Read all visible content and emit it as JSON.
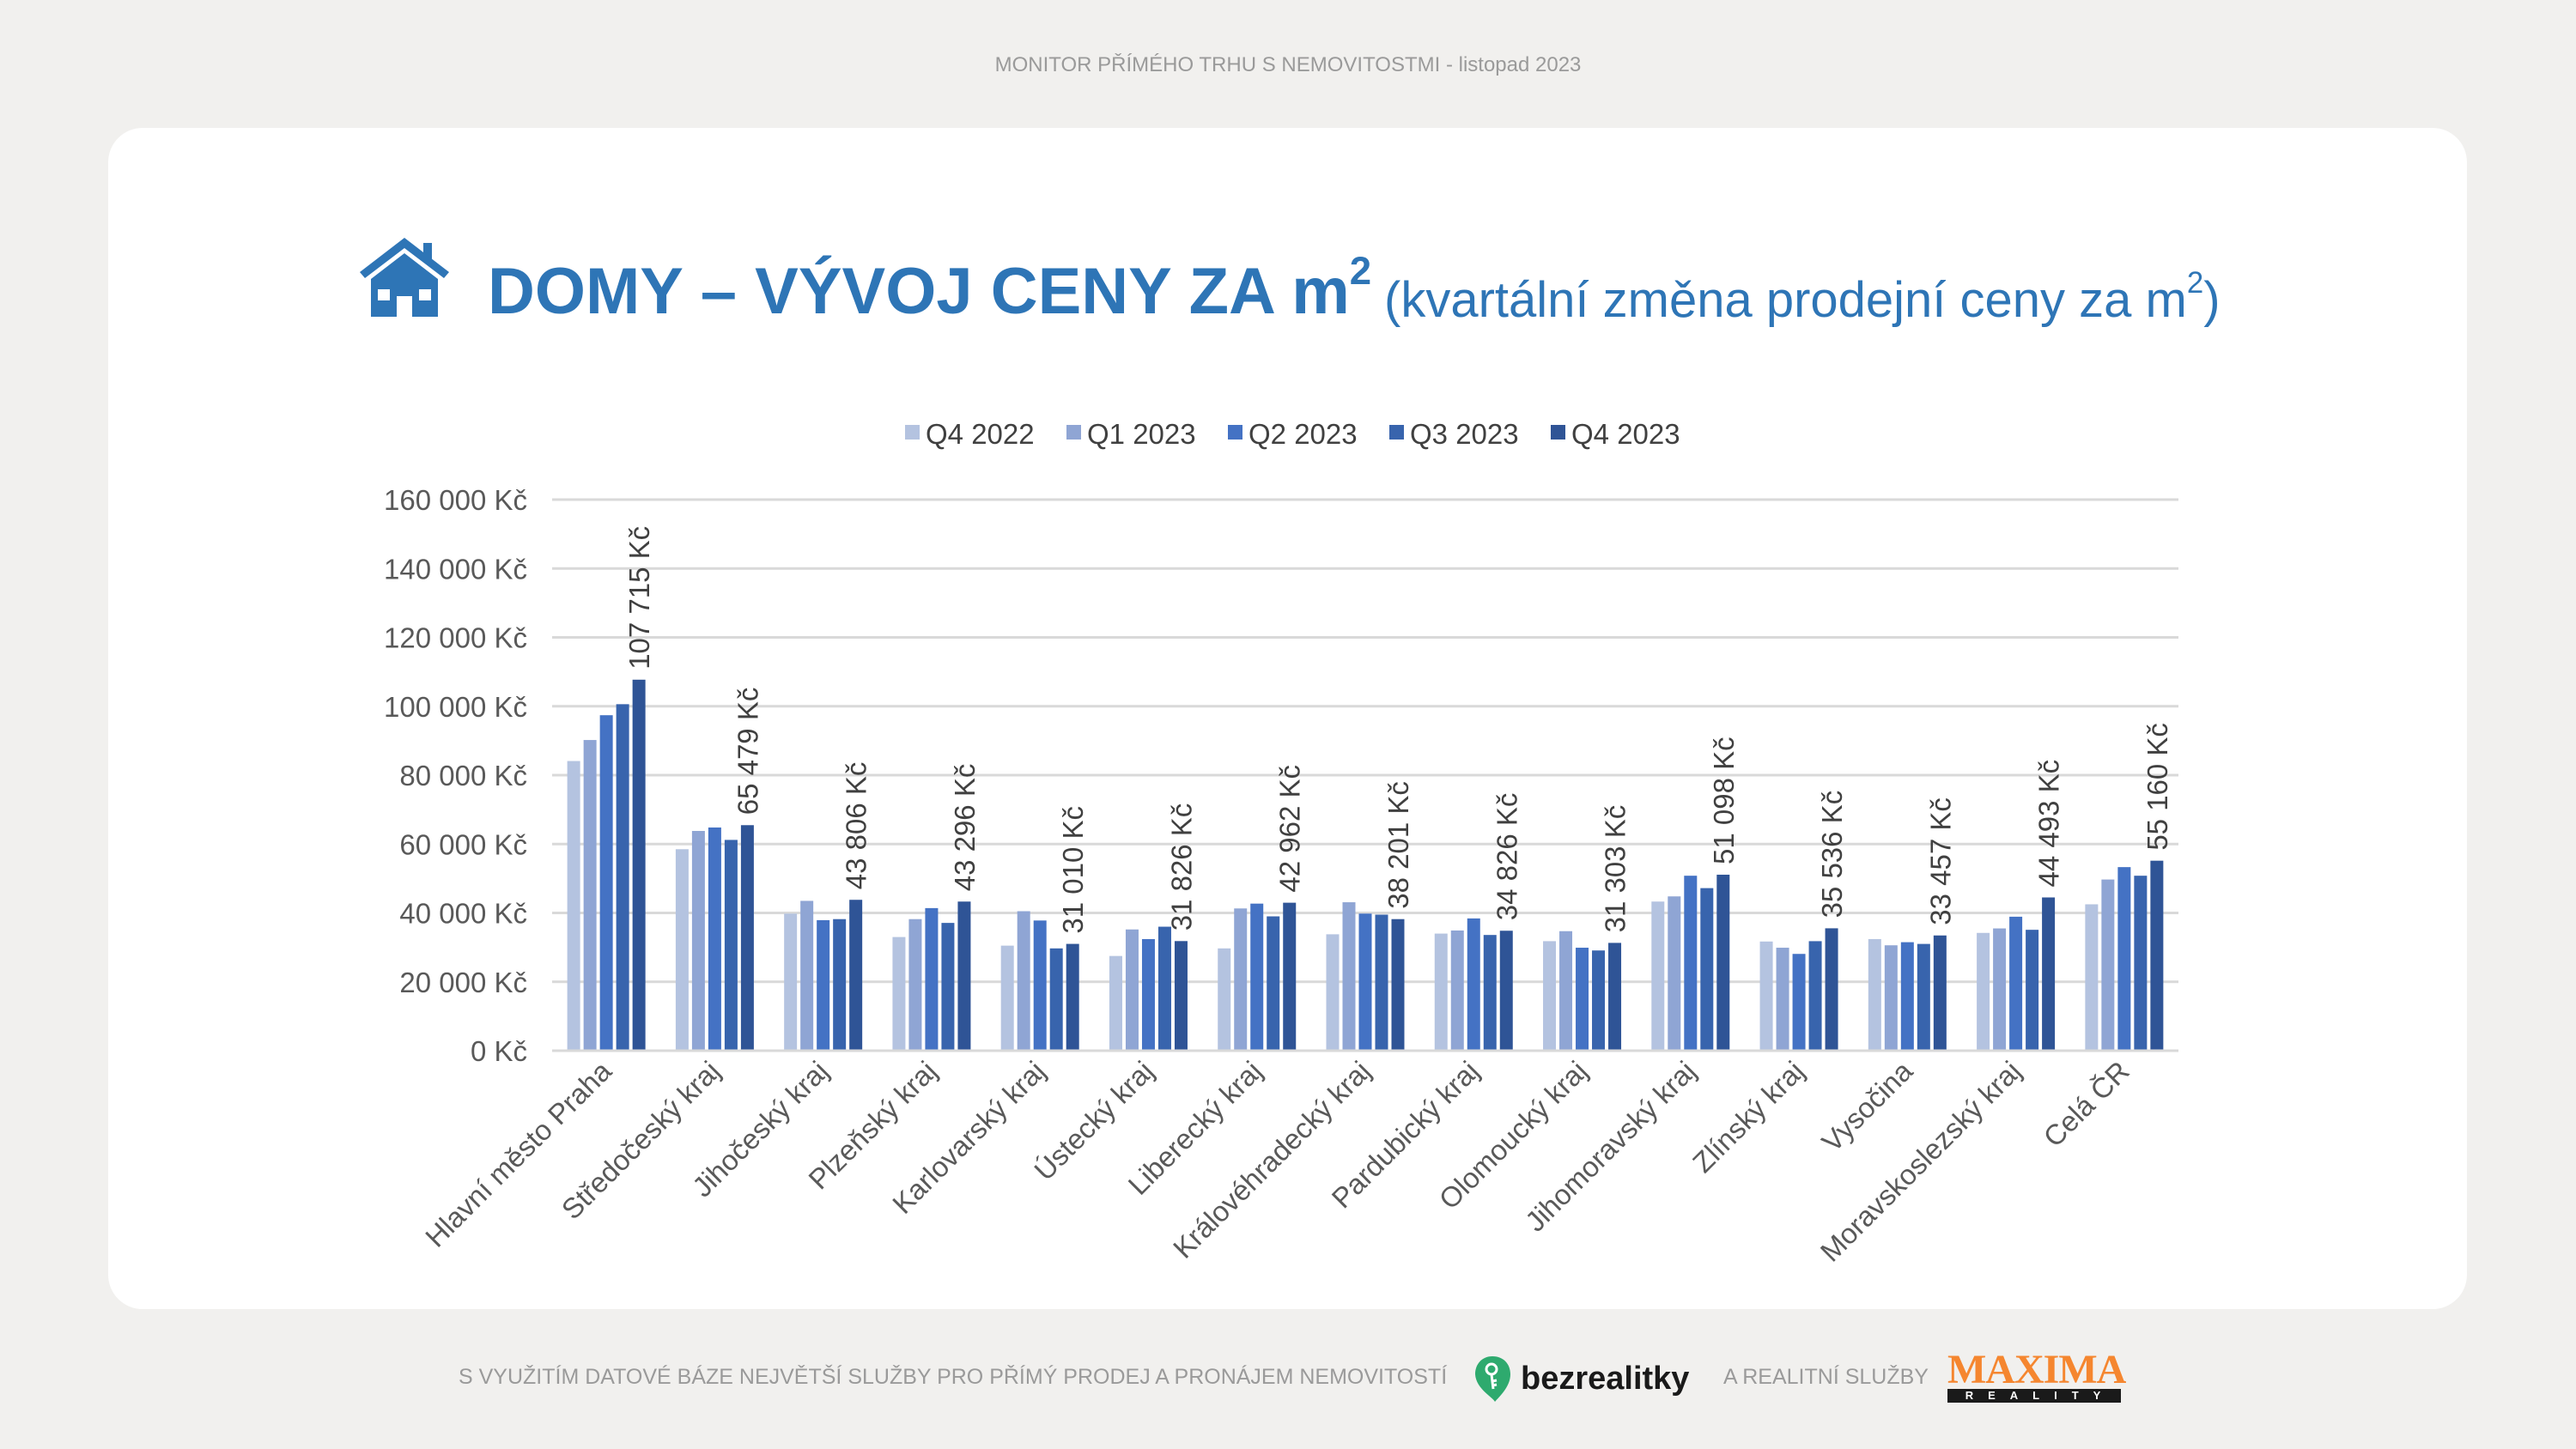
{
  "header": {
    "text": "MONITOR PŘÍMÉHO TRHU S NEMOVITOSTMI - listopad 2023"
  },
  "title": {
    "main": "DOMY – VÝVOJ CENY ZA m",
    "main_sup": "2",
    "sub": "(kvartální změna prodejní ceny za m",
    "sub_sup": "2",
    "sub_end": ")",
    "icon": "house-icon"
  },
  "footer": {
    "text": "S VYUŽITÍM DATOVÉ BÁZE NEJVĚTŠÍ SLUŽBY PRO PŘÍMÝ PRODEJ A PRONÁJEM NEMOVITOSTÍ",
    "bezrealitky": "bezrealitky",
    "and_text": "A REALITNÍ SLUŽBY",
    "maxima_top": "MAXIMA",
    "maxima_bottom": "REALITY"
  },
  "chart_data": {
    "type": "bar",
    "title": "DOMY – VÝVOJ CENY ZA m2",
    "xlabel": "",
    "ylabel": "",
    "ylim": [
      0,
      160000
    ],
    "yticks": [
      0,
      20000,
      40000,
      60000,
      80000,
      100000,
      120000,
      140000,
      160000
    ],
    "ytick_labels": [
      "0 Kč",
      "20 000 Kč",
      "40 000 Kč",
      "60 000 Kč",
      "80 000 Kč",
      "100 000 Kč",
      "120 000 Kč",
      "140 000 Kč",
      "160 000 Kč"
    ],
    "grid": true,
    "legend_position": "top-center",
    "categories": [
      "Hlavní město Praha",
      "Středočeský kraj",
      "Jihočeský kraj",
      "Plzeňský kraj",
      "Karlovarský kraj",
      "Ústecký kraj",
      "Liberecký kraj",
      "Královéhradecký kraj",
      "Pardubický kraj",
      "Olomoucký kraj",
      "Jihomoravský kraj",
      "Zlínský kraj",
      "Vysočina",
      "Moravskoslezský kraj",
      "Celá ČR"
    ],
    "series": [
      {
        "name": "Q4 2022",
        "color": "#b4c3e0",
        "values": [
          84100,
          58500,
          39800,
          33000,
          30500,
          27500,
          29700,
          33800,
          34000,
          31800,
          43300,
          31700,
          32400,
          34200,
          42500
        ]
      },
      {
        "name": "Q1 2023",
        "color": "#8fa5d4",
        "values": [
          90200,
          63800,
          43500,
          38200,
          40500,
          35200,
          41300,
          43100,
          34900,
          34700,
          44800,
          29900,
          30600,
          35500,
          49700
        ]
      },
      {
        "name": "Q2 2023",
        "color": "#4472c4",
        "values": [
          97400,
          64800,
          37900,
          41400,
          37800,
          32400,
          42700,
          39800,
          38400,
          29900,
          50800,
          28100,
          31500,
          38900,
          53300
        ]
      },
      {
        "name": "Q3 2023",
        "color": "#3864ad",
        "values": [
          100600,
          61200,
          38200,
          37100,
          29700,
          36000,
          39000,
          39500,
          33600,
          29100,
          47200,
          31800,
          31000,
          35100,
          50800
        ]
      },
      {
        "name": "Q4 2023",
        "color": "#2f5496",
        "values": [
          107715,
          65479,
          43806,
          43296,
          31010,
          31826,
          42962,
          38201,
          34826,
          31303,
          51098,
          35536,
          33457,
          44493,
          55160
        ]
      }
    ],
    "data_labels": [
      "107 715 Kč",
      "65 479 Kč",
      "43 806 Kč",
      "43 296 Kč",
      "31 010 Kč",
      "31 826 Kč",
      "42 962 Kč",
      "38 201 Kč",
      "34 826 Kč",
      "31 303 Kč",
      "51 098 Kč",
      "35 536 Kč",
      "33 457 Kč",
      "44 493 Kč",
      "55 160 Kč"
    ]
  }
}
